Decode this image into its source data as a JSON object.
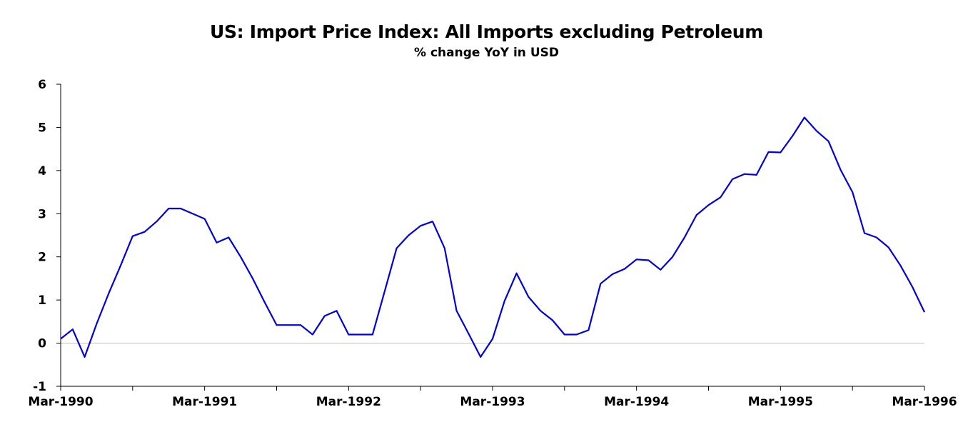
{
  "chart_data": {
    "type": "line",
    "title": "US: Import Price Index: All Imports excluding Petroleum",
    "subtitle": "% change YoY in USD",
    "xlabel": "",
    "ylabel": "",
    "ylim": [
      -1,
      6
    ],
    "yticks": [
      "6",
      "5",
      "4",
      "3",
      "2",
      "1",
      "0",
      "-1"
    ],
    "xticks": [
      "Mar-1990",
      "Mar-1991",
      "Mar-1992",
      "Mar-1993",
      "Mar-1994",
      "Mar-1995",
      "Mar-1996"
    ],
    "grid": false,
    "zero_line": true,
    "line_color": "#0000e0",
    "axis_color": "#000000",
    "zero_line_color": "#c0c0c0",
    "series": [
      {
        "x": [
          "1990-03",
          "1990-04",
          "1990-05",
          "1990-06",
          "1990-07",
          "1990-08",
          "1990-09",
          "1990-10",
          "1990-11",
          "1990-12",
          "1991-01",
          "1991-02",
          "1991-03",
          "1991-04",
          "1991-05",
          "1991-06",
          "1991-07",
          "1991-08",
          "1991-09",
          "1991-10",
          "1991-11",
          "1991-12",
          "1992-01",
          "1992-02",
          "1992-03",
          "1992-04",
          "1992-05",
          "1992-06",
          "1992-07",
          "1992-08",
          "1992-09",
          "1992-10",
          "1992-11",
          "1992-12",
          "1993-01",
          "1993-02",
          "1993-03",
          "1993-04",
          "1993-05",
          "1993-06",
          "1993-07",
          "1993-08",
          "1993-09",
          "1993-10",
          "1993-11",
          "1993-12",
          "1994-01",
          "1994-02",
          "1994-03",
          "1994-04",
          "1994-05",
          "1994-06",
          "1994-07",
          "1994-08",
          "1994-09",
          "1994-10",
          "1994-11",
          "1994-12",
          "1995-01",
          "1995-02",
          "1995-03",
          "1995-04",
          "1995-05",
          "1995-06",
          "1995-07",
          "1995-08",
          "1995-09",
          "1995-10",
          "1995-11",
          "1995-12",
          "1996-01",
          "1996-02",
          "1996-03"
        ],
        "values": [
          0.1,
          0.32,
          -0.32,
          0.45,
          1.15,
          1.8,
          2.48,
          2.58,
          2.82,
          3.12,
          3.12,
          3.0,
          2.88,
          2.33,
          2.45,
          2.0,
          1.5,
          0.95,
          0.42,
          0.42,
          0.42,
          0.2,
          0.63,
          0.75,
          0.2,
          0.2,
          0.2,
          1.2,
          2.2,
          2.5,
          2.72,
          2.82,
          2.2,
          0.75,
          0.22,
          -0.32,
          0.1,
          0.98,
          1.62,
          1.07,
          0.75,
          0.53,
          0.2,
          0.2,
          0.3,
          1.38,
          1.6,
          1.72,
          1.94,
          1.92,
          1.7,
          2.0,
          2.45,
          2.97,
          3.2,
          3.38,
          3.8,
          3.92,
          3.9,
          4.43,
          4.42,
          4.8,
          5.23,
          4.92,
          4.68,
          4.02,
          3.5,
          2.55,
          2.45,
          2.22,
          1.8,
          1.3,
          0.72
        ]
      }
    ]
  }
}
